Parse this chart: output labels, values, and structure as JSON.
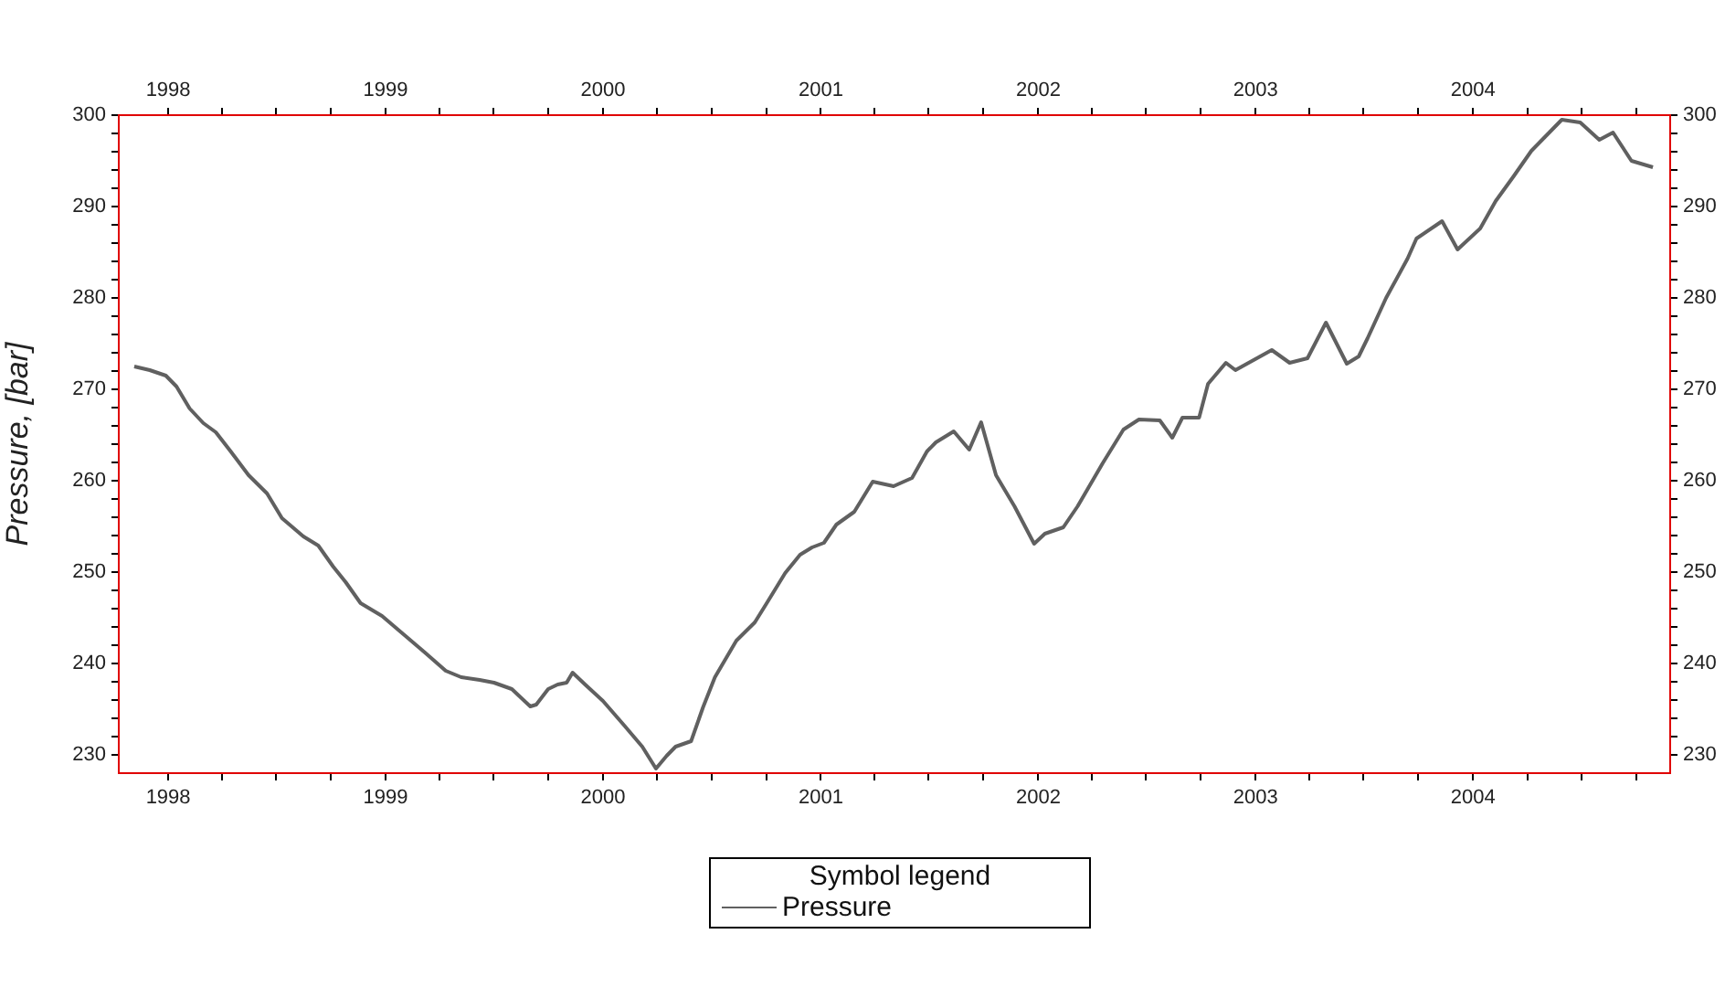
{
  "chart_data": {
    "type": "line",
    "ylabel": "Pressure, [bar]",
    "legend_title": "Symbol legend",
    "legend": "bottom",
    "marker": "none",
    "line_style": "solid",
    "x": [
      "1997-11-05",
      "1997-12-01",
      "1997-12-28",
      "1998-01-15",
      "1998-02-06",
      "1998-03-01",
      "1998-03-22",
      "1998-04-16",
      "1998-05-16",
      "1998-06-16",
      "1998-07-11",
      "1998-08-16",
      "1998-09-10",
      "1998-10-05",
      "1998-10-26",
      "1998-11-20",
      "1998-12-26",
      "1999-01-31",
      "1999-03-08",
      "1999-04-12",
      "1999-05-08",
      "1999-06-08",
      "1999-07-02",
      "1999-08-01",
      "1999-09-01",
      "1999-09-11",
      "1999-10-01",
      "1999-10-17",
      "1999-11-01",
      "1999-11-11",
      "1999-12-02",
      "2000-01-01",
      "2000-02-06",
      "2000-03-07",
      "2000-03-30",
      "2000-04-17",
      "2000-05-02",
      "2000-05-28",
      "2000-06-17",
      "2000-07-07",
      "2000-08-12",
      "2000-09-12",
      "2000-10-02",
      "2000-11-02",
      "2000-11-27",
      "2000-12-17",
      "2001-01-06",
      "2001-01-27",
      "2001-02-26",
      "2001-03-29",
      "2001-05-03",
      "2001-06-03",
      "2001-06-28",
      "2001-07-13",
      "2001-08-12",
      "2001-09-07",
      "2001-09-27",
      "2001-10-22",
      "2001-11-22",
      "2001-12-25",
      "2002-01-12",
      "2002-02-12",
      "2002-03-08",
      "2002-04-19",
      "2002-05-24",
      "2002-06-19",
      "2002-07-24",
      "2002-08-14",
      "2002-08-31",
      "2002-09-28",
      "2002-10-13",
      "2002-11-12",
      "2002-11-28",
      "2003-01-28",
      "2003-02-27",
      "2003-03-29",
      "2003-04-29",
      "2003-06-03",
      "2003-06-23",
      "2003-07-08",
      "2003-08-08",
      "2003-09-13",
      "2003-09-28",
      "2003-11-10",
      "2003-12-06",
      "2004-01-13",
      "2004-02-08",
      "2004-03-09",
      "2004-04-08",
      "2004-05-29",
      "2004-06-29",
      "2004-07-31",
      "2004-08-23",
      "2004-09-23",
      "2004-10-29"
    ],
    "series": [
      {
        "name": "Pressure",
        "color": "#606060",
        "values": [
          272.5,
          272.1,
          271.5,
          270.3,
          267.9,
          266.3,
          265.3,
          263.2,
          260.6,
          258.6,
          255.9,
          253.9,
          252.9,
          250.6,
          248.9,
          246.6,
          245.2,
          243.2,
          241.2,
          239.2,
          238.5,
          238.2,
          237.9,
          237.2,
          235.3,
          235.5,
          237.2,
          237.7,
          237.9,
          239.0,
          237.7,
          235.9,
          233.2,
          230.9,
          228.5,
          229.9,
          230.9,
          231.5,
          235.2,
          238.5,
          242.5,
          244.5,
          246.6,
          249.9,
          251.9,
          252.7,
          253.2,
          255.2,
          256.6,
          259.9,
          259.4,
          260.3,
          263.2,
          264.2,
          265.4,
          263.4,
          266.4,
          260.6,
          257.2,
          253.1,
          254.2,
          254.9,
          257.2,
          261.9,
          265.6,
          266.7,
          266.6,
          264.7,
          266.9,
          266.9,
          270.6,
          272.9,
          272.1,
          274.3,
          272.9,
          273.4,
          277.3,
          272.8,
          273.6,
          275.6,
          280.0,
          284.3,
          286.5,
          288.4,
          285.3,
          287.6,
          290.6,
          293.3,
          296.1,
          299.5,
          299.2,
          297.3,
          298.1,
          295.0,
          294.3
        ]
      }
    ],
    "xlim": [
      "1997-10-10",
      "2004-11-27"
    ],
    "xticks": [
      {
        "value": "1998",
        "label": "1998"
      },
      {
        "value": "1998-04",
        "label": null
      },
      {
        "value": "1998-07",
        "label": null
      },
      {
        "value": "1998-10",
        "label": null
      },
      {
        "value": "1999",
        "label": "1999"
      },
      {
        "value": "1999-04",
        "label": null
      },
      {
        "value": "1999-07",
        "label": null
      },
      {
        "value": "1999-10",
        "label": null
      },
      {
        "value": "2000",
        "label": "2000"
      },
      {
        "value": "2000-04",
        "label": null
      },
      {
        "value": "2000-07",
        "label": null
      },
      {
        "value": "2000-10",
        "label": null
      },
      {
        "value": "2001",
        "label": "2001"
      },
      {
        "value": "2001-04",
        "label": null
      },
      {
        "value": "2001-07",
        "label": null
      },
      {
        "value": "2001-10",
        "label": null
      },
      {
        "value": "2002",
        "label": "2002"
      },
      {
        "value": "2002-04",
        "label": null
      },
      {
        "value": "2002-07",
        "label": null
      },
      {
        "value": "2002-10",
        "label": null
      },
      {
        "value": "2003",
        "label": "2003"
      },
      {
        "value": "2003-04",
        "label": null
      },
      {
        "value": "2003-07",
        "label": null
      },
      {
        "value": "2003-10",
        "label": null
      },
      {
        "value": "2004",
        "label": "2004"
      },
      {
        "value": "2004-04",
        "label": null
      },
      {
        "value": "2004-07",
        "label": null
      },
      {
        "value": "2004-10",
        "label": null
      }
    ],
    "x2lim": [
      "1997-10-10",
      "2004-11-27"
    ],
    "x2ticks": [
      {
        "value": "1998",
        "label": "1998"
      },
      {
        "value": "1998-04",
        "label": null
      },
      {
        "value": "1998-07",
        "label": null
      },
      {
        "value": "1998-10",
        "label": null
      },
      {
        "value": "1999",
        "label": "1999"
      },
      {
        "value": "1999-04",
        "label": null
      },
      {
        "value": "1999-07",
        "label": null
      },
      {
        "value": "1999-10",
        "label": null
      },
      {
        "value": "2000",
        "label": "2000"
      },
      {
        "value": "2000-04",
        "label": null
      },
      {
        "value": "2000-07",
        "label": null
      },
      {
        "value": "2000-10",
        "label": null
      },
      {
        "value": "2001",
        "label": "2001"
      },
      {
        "value": "2001-04",
        "label": null
      },
      {
        "value": "2001-07",
        "label": null
      },
      {
        "value": "2001-10",
        "label": null
      },
      {
        "value": "2002",
        "label": "2002"
      },
      {
        "value": "2002-04",
        "label": null
      },
      {
        "value": "2002-07",
        "label": null
      },
      {
        "value": "2002-10",
        "label": null
      },
      {
        "value": "2003",
        "label": "2003"
      },
      {
        "value": "2003-04",
        "label": null
      },
      {
        "value": "2003-07",
        "label": null
      },
      {
        "value": "2003-10",
        "label": null
      },
      {
        "value": "2004",
        "label": "2004"
      },
      {
        "value": "2004-04",
        "label": null
      },
      {
        "value": "2004-07",
        "label": null
      },
      {
        "value": "2004-10",
        "label": null
      }
    ],
    "ylim": [
      228,
      300
    ],
    "yticks": [
      230,
      {
        "value": 232,
        "label": null
      },
      {
        "value": 234,
        "label": null
      },
      {
        "value": 236,
        "label": null
      },
      {
        "value": 238,
        "label": null
      },
      240,
      {
        "value": 242,
        "label": null
      },
      {
        "value": 244,
        "label": null
      },
      {
        "value": 246,
        "label": null
      },
      {
        "value": 248,
        "label": null
      },
      250,
      {
        "value": 252,
        "label": null
      },
      {
        "value": 254,
        "label": null
      },
      {
        "value": 256,
        "label": null
      },
      {
        "value": 258,
        "label": null
      },
      260,
      {
        "value": 262,
        "label": null
      },
      {
        "value": 264,
        "label": null
      },
      {
        "value": 266,
        "label": null
      },
      {
        "value": 268,
        "label": null
      },
      270,
      {
        "value": 272,
        "label": null
      },
      {
        "value": 274,
        "label": null
      },
      {
        "value": 276,
        "label": null
      },
      {
        "value": 278,
        "label": null
      },
      280,
      {
        "value": 282,
        "label": null
      },
      {
        "value": 284,
        "label": null
      },
      {
        "value": 286,
        "label": null
      },
      {
        "value": 288,
        "label": null
      },
      290,
      {
        "value": 292,
        "label": null
      },
      {
        "value": 294,
        "label": null
      },
      {
        "value": 296,
        "label": null
      },
      {
        "value": 298,
        "label": null
      },
      300
    ],
    "y2lim": [
      228,
      300
    ],
    "y2ticks": [
      230,
      {
        "value": 232,
        "label": null
      },
      {
        "value": 234,
        "label": null
      },
      {
        "value": 236,
        "label": null
      },
      {
        "value": 238,
        "label": null
      },
      240,
      {
        "value": 242,
        "label": null
      },
      {
        "value": 244,
        "label": null
      },
      {
        "value": 246,
        "label": null
      },
      {
        "value": 248,
        "label": null
      },
      250,
      {
        "value": 252,
        "label": null
      },
      {
        "value": 254,
        "label": null
      },
      {
        "value": 256,
        "label": null
      },
      {
        "value": 258,
        "label": null
      },
      260,
      {
        "value": 262,
        "label": null
      },
      {
        "value": 264,
        "label": null
      },
      {
        "value": 266,
        "label": null
      },
      {
        "value": 268,
        "label": null
      },
      270,
      {
        "value": 272,
        "label": null
      },
      {
        "value": 274,
        "label": null
      },
      {
        "value": 276,
        "label": null
      },
      {
        "value": 278,
        "label": null
      },
      280,
      {
        "value": 282,
        "label": null
      },
      {
        "value": 284,
        "label": null
      },
      {
        "value": 286,
        "label": null
      },
      {
        "value": 288,
        "label": null
      },
      290,
      {
        "value": 292,
        "label": null
      },
      {
        "value": 294,
        "label": null
      },
      {
        "value": 296,
        "label": null
      },
      {
        "value": 298,
        "label": null
      },
      300
    ]
  }
}
